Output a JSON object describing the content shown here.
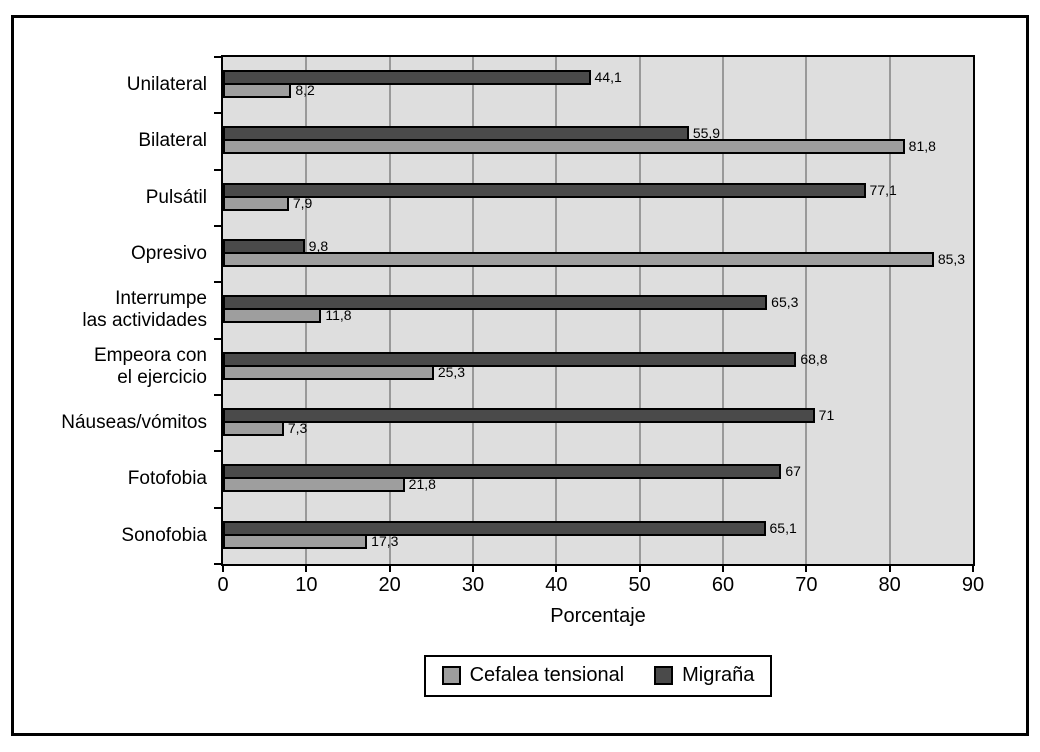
{
  "chart_data": {
    "type": "bar",
    "orientation": "horizontal",
    "title": "",
    "xlabel": "Porcentaje",
    "xlim": [
      0,
      90
    ],
    "xticks": [
      0,
      10,
      20,
      30,
      40,
      50,
      60,
      70,
      80,
      90
    ],
    "gridlines_at": [
      10,
      20,
      30,
      40,
      50,
      60,
      70,
      80
    ],
    "grid": true,
    "decimal_separator": ",",
    "plot_background": "#dedede",
    "gridline_color": "#999999",
    "categories": [
      "Unilateral",
      "Bilateral",
      "Pulsátil",
      "Opresivo",
      "Interrumpe\nlas actividades",
      "Empeora con\nel ejercicio",
      "Náuseas/vómitos",
      "Fotofobia",
      "Sonofobia"
    ],
    "series": [
      {
        "name": "Migraña",
        "color": "#4a4a4a",
        "values": [
          44.1,
          55.9,
          77.1,
          9.8,
          65.3,
          68.8,
          71,
          67,
          65.1
        ],
        "value_labels": [
          "44,1",
          "55,9",
          "77,1",
          "9,8",
          "65,3",
          "68,8",
          "71",
          "67",
          "65,1"
        ]
      },
      {
        "name": "Cefalea tensional",
        "color": "#9e9e9e",
        "values": [
          8.2,
          81.8,
          7.9,
          85.3,
          11.8,
          25.3,
          7.3,
          21.8,
          17.3
        ],
        "value_labels": [
          "8,2",
          "81,8",
          "7,9",
          "85,3",
          "11,8",
          "25,3",
          "7,3",
          "21,8",
          "17,3"
        ]
      }
    ],
    "legend": {
      "position": "bottom-center",
      "entries": [
        {
          "label": "Cefalea tensional",
          "color": "#9e9e9e"
        },
        {
          "label": "Migraña",
          "color": "#4a4a4a"
        }
      ]
    }
  }
}
